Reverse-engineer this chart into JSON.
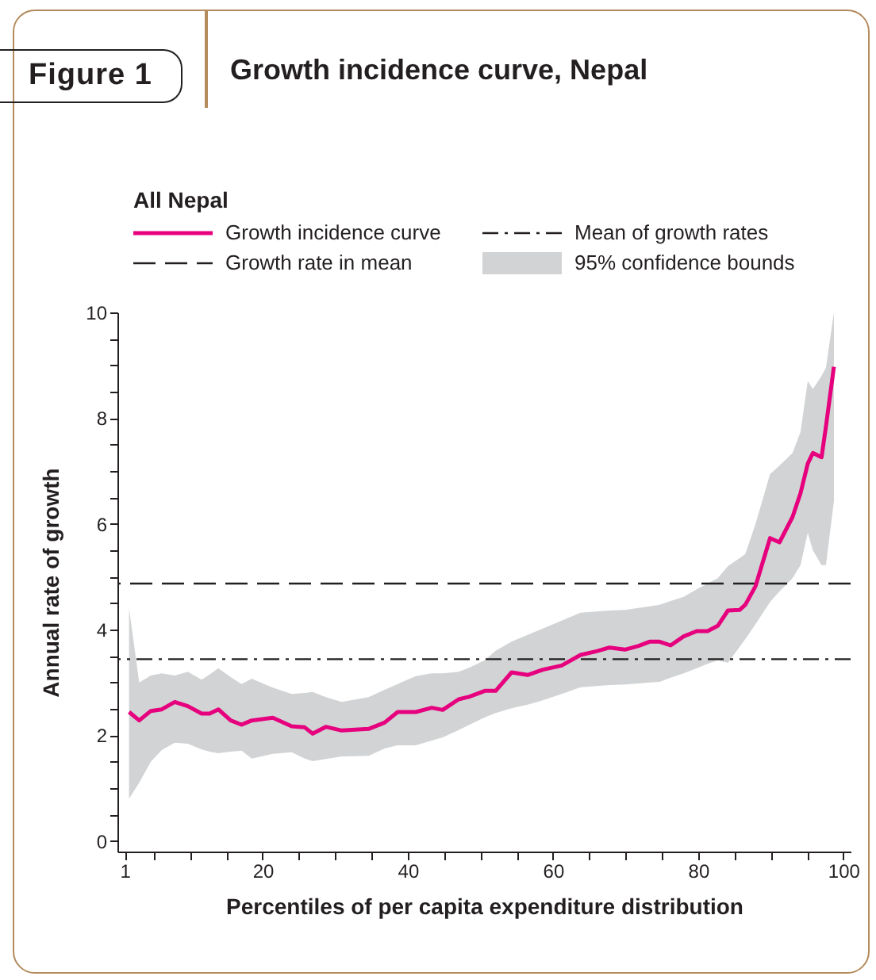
{
  "chart_data": {
    "type": "line",
    "title": "Growth incidence curve, Nepal",
    "legend_title": "All Nepal",
    "annotations": [
      "Figure 1",
      "95% confidence bounds"
    ],
    "xlabel": "Percentiles of per capita expenditure distribution",
    "ylabel": "Annual rate of growth",
    "xlim": [
      0,
      101
    ],
    "ylim": [
      -0.2,
      10
    ],
    "xticks": [
      1,
      {
        "value": 5,
        "label": null
      },
      {
        "value": 10,
        "label": null
      },
      {
        "value": 15,
        "label": null
      },
      20,
      {
        "value": 25,
        "label": null
      },
      {
        "value": 30,
        "label": null
      },
      {
        "value": 35,
        "label": null
      },
      40,
      {
        "value": 45,
        "label": null
      },
      {
        "value": 50,
        "label": null
      },
      {
        "value": 55,
        "label": null
      },
      60,
      {
        "value": 65,
        "label": null
      },
      {
        "value": 70,
        "label": null
      },
      {
        "value": 75,
        "label": null
      },
      80,
      {
        "value": 85,
        "label": null
      },
      {
        "value": 90,
        "label": null
      },
      {
        "value": 95,
        "label": null
      },
      100
    ],
    "yticks": [
      0,
      {
        "value": 0.5,
        "label": null
      },
      {
        "value": 1,
        "label": null
      },
      {
        "value": 1.5,
        "label": null
      },
      2,
      {
        "value": 2.5,
        "label": null
      },
      {
        "value": 3,
        "label": null
      },
      {
        "value": 3.5,
        "label": null
      },
      4,
      {
        "value": 4.5,
        "label": null
      },
      {
        "value": 5,
        "label": null
      },
      {
        "value": 5.5,
        "label": null
      },
      6,
      {
        "value": 6.5,
        "label": null
      },
      {
        "value": 7,
        "label": null
      },
      {
        "value": 7.5,
        "label": null
      },
      8,
      {
        "value": 8.5,
        "label": null
      },
      {
        "value": 9,
        "label": null
      },
      {
        "value": 9.5,
        "label": null
      },
      10
    ],
    "grid": false,
    "legend": "top",
    "line_style": "solid",
    "ref_lines": [
      {
        "axis": "y",
        "value": 4.87,
        "label": "Growth rate in mean",
        "line_style": "dashed",
        "color": "#231f20"
      },
      {
        "axis": "y",
        "value": 3.44,
        "label": "Mean of growth rates",
        "line_style": "dashdot",
        "color": "#231f20"
      }
    ],
    "series": [
      {
        "name": "Growth incidence curve",
        "color": "#e6007e",
        "x": [
          1.6,
          3.0,
          4.6,
          6.1,
          7.9,
          9.7,
          11.6,
          12.7,
          13.9,
          15.6,
          17.1,
          18.5,
          21.4,
          24.0,
          25.8,
          26.9,
          28.7,
          30.9,
          34.6,
          36.8,
          38.6,
          41.1,
          43.3,
          44.8,
          47.0,
          48.5,
          50.6,
          52.1,
          54.3,
          56.5,
          58.6,
          61.2,
          63.8,
          66.0,
          67.8,
          69.9,
          71.8,
          73.3,
          74.7,
          76.2,
          78.0,
          79.8,
          81.3,
          82.7,
          84.1,
          85.7,
          86.5,
          87.9,
          89.9,
          91.2,
          93.0,
          94.1,
          95.1,
          95.8,
          97.0,
          97.6,
          98.7
        ],
        "values": [
          2.44,
          2.28,
          2.46,
          2.49,
          2.63,
          2.55,
          2.41,
          2.41,
          2.49,
          2.28,
          2.2,
          2.28,
          2.33,
          2.17,
          2.15,
          2.03,
          2.16,
          2.09,
          2.12,
          2.24,
          2.44,
          2.44,
          2.52,
          2.48,
          2.68,
          2.73,
          2.84,
          2.84,
          3.19,
          3.14,
          3.24,
          3.32,
          3.52,
          3.59,
          3.66,
          3.62,
          3.69,
          3.77,
          3.77,
          3.7,
          3.87,
          3.97,
          3.97,
          4.07,
          4.36,
          4.37,
          4.47,
          4.82,
          5.73,
          5.65,
          6.13,
          6.58,
          7.14,
          7.34,
          7.26,
          7.84,
          8.97
        ],
        "lower": [
          0.8,
          1.1,
          1.5,
          1.72,
          1.86,
          1.84,
          1.73,
          1.69,
          1.66,
          1.69,
          1.71,
          1.56,
          1.65,
          1.68,
          1.56,
          1.51,
          1.55,
          1.6,
          1.61,
          1.75,
          1.81,
          1.81,
          1.9,
          1.96,
          2.1,
          2.2,
          2.34,
          2.42,
          2.51,
          2.58,
          2.66,
          2.78,
          2.91,
          2.93,
          2.95,
          2.96,
          2.98,
          3.0,
          3.01,
          3.09,
          3.17,
          3.27,
          3.35,
          3.42,
          3.37,
          3.67,
          3.82,
          4.1,
          4.52,
          4.72,
          4.97,
          5.22,
          5.83,
          5.5,
          5.22,
          5.22,
          6.43
        ],
        "upper": [
          4.4,
          3.0,
          3.13,
          3.17,
          3.13,
          3.2,
          3.05,
          3.15,
          3.27,
          3.1,
          2.97,
          3.07,
          2.9,
          2.78,
          2.8,
          2.82,
          2.72,
          2.63,
          2.72,
          2.86,
          2.97,
          3.12,
          3.17,
          3.17,
          3.2,
          3.28,
          3.42,
          3.6,
          3.77,
          3.9,
          4.02,
          4.17,
          4.32,
          4.34,
          4.36,
          4.37,
          4.41,
          4.44,
          4.47,
          4.54,
          4.62,
          4.76,
          4.87,
          4.97,
          5.2,
          5.35,
          5.43,
          6.0,
          6.94,
          7.1,
          7.34,
          7.74,
          8.7,
          8.55,
          8.8,
          8.95,
          10.0
        ]
      }
    ]
  }
}
